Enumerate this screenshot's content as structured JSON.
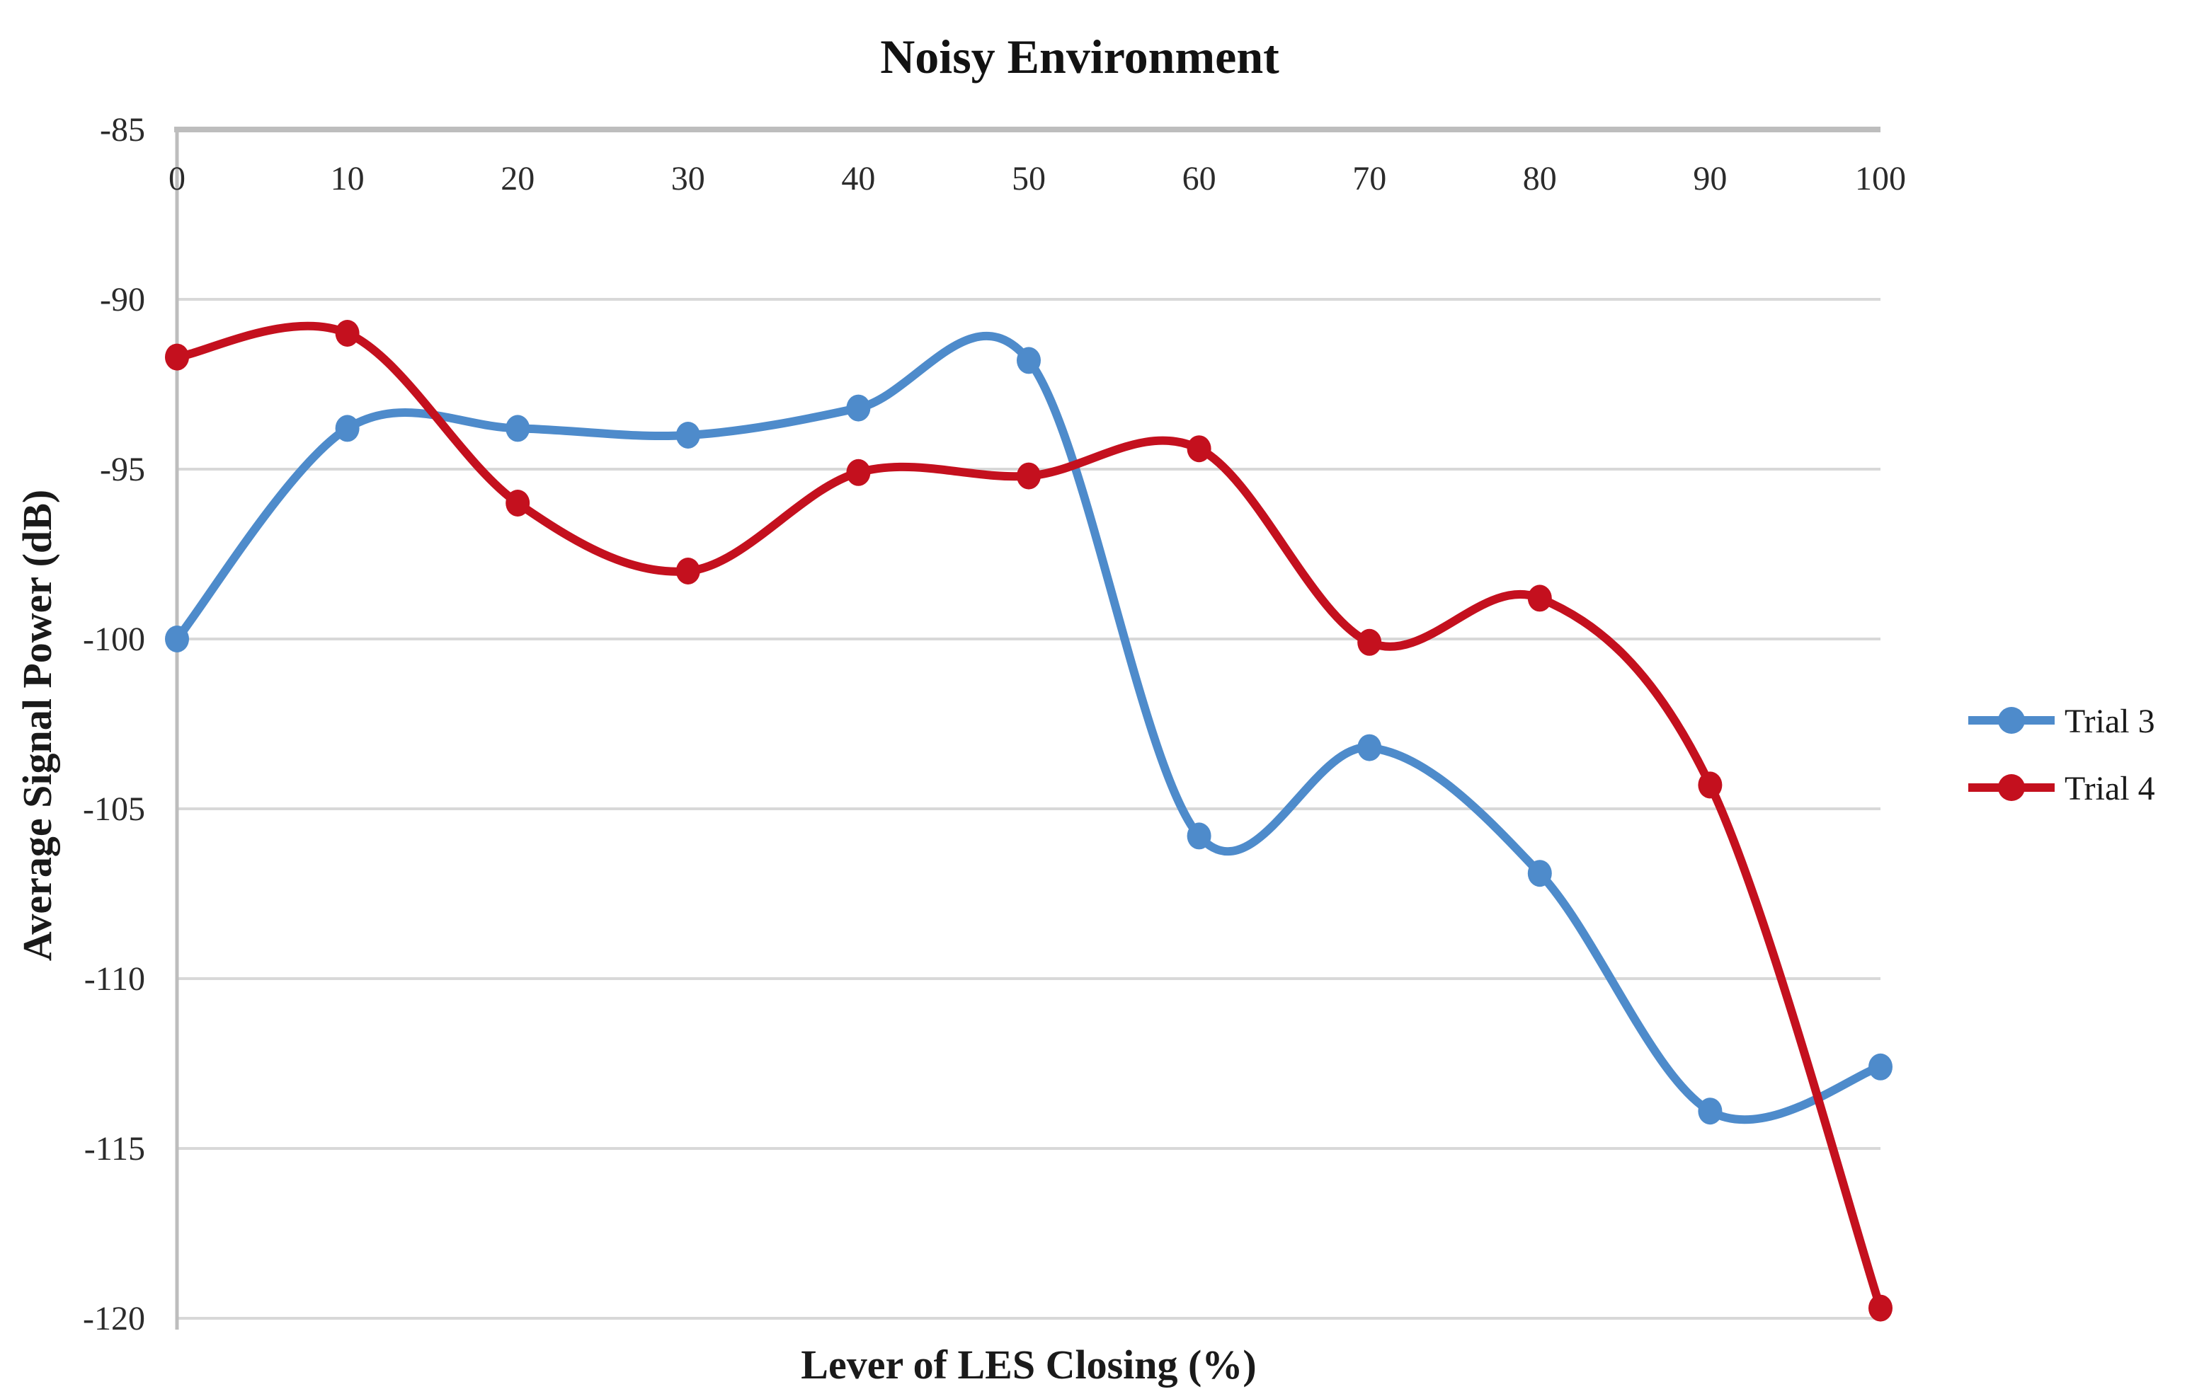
{
  "page": {
    "background": "#FFFFFF"
  },
  "chart_data": {
    "type": "line",
    "title": "Noisy Environment",
    "xlabel": "Lever of LES Closing (%)",
    "ylabel": "Average Signal Power (dB)",
    "x": [
      0,
      10,
      20,
      30,
      40,
      50,
      60,
      70,
      80,
      90,
      100
    ],
    "xticks": [
      "0",
      "10",
      "20",
      "30",
      "40",
      "50",
      "60",
      "70",
      "80",
      "90",
      "100"
    ],
    "yticks": [
      -85,
      -90,
      -95,
      -100,
      -105,
      -110,
      -115,
      -120
    ],
    "ylim": [
      -120,
      -85
    ],
    "grid": true,
    "smooth": true,
    "marker": "circle",
    "legend_position": "right",
    "series": [
      {
        "name": "Trial 3",
        "color": "#4E8BCB",
        "values": [
          -100.0,
          -93.8,
          -93.8,
          -94.0,
          -93.2,
          -91.8,
          -105.8,
          -103.2,
          -106.9,
          -113.9,
          -112.6
        ]
      },
      {
        "name": "Trial 4",
        "color": "#C4101E",
        "values": [
          -91.7,
          -91.0,
          -96.0,
          -98.0,
          -95.1,
          -95.2,
          -94.4,
          -100.1,
          -98.8,
          -104.3,
          -119.7
        ]
      }
    ]
  },
  "style": {
    "grid_color": "#D8D8D8",
    "axis_color": "#BDBDBD",
    "tick_color": "#2B2B2B",
    "title_color": "#121212"
  }
}
